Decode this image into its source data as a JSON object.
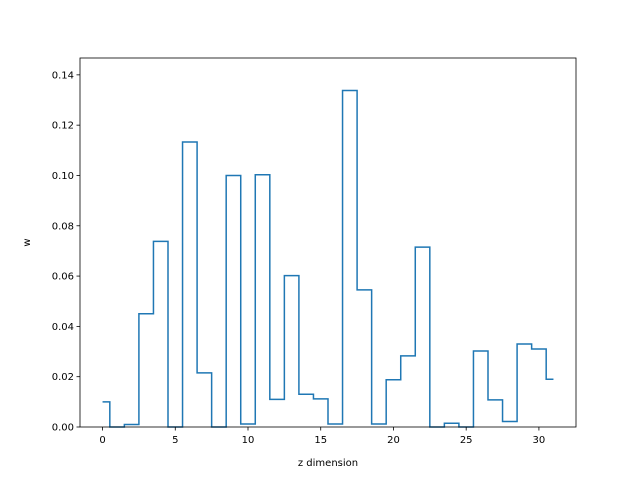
{
  "chart_data": {
    "type": "line",
    "drawstyle": "steps-mid",
    "title": "",
    "xlabel": "z dimension",
    "ylabel": "w",
    "xlim": [
      -1.55,
      32.55
    ],
    "ylim": [
      0,
      0.1467
    ],
    "x": [
      0,
      1,
      2,
      3,
      4,
      5,
      6,
      7,
      8,
      9,
      10,
      11,
      12,
      13,
      14,
      15,
      16,
      17,
      18,
      19,
      20,
      21,
      22,
      23,
      24,
      25,
      26,
      27,
      28,
      29,
      30,
      31
    ],
    "series": [
      {
        "color": "#1f77b4",
        "values": [
          0.01,
          0.0,
          0.001,
          0.045,
          0.0738,
          0.0,
          0.1133,
          0.0215,
          0.0,
          0.1,
          0.0012,
          0.1003,
          0.011,
          0.0602,
          0.013,
          0.0112,
          0.0012,
          0.1338,
          0.0545,
          0.0012,
          0.0188,
          0.0283,
          0.0715,
          0.0,
          0.0015,
          0.0,
          0.0302,
          0.0108,
          0.0022,
          0.033,
          0.031,
          0.019
        ]
      }
    ],
    "xticks": [
      0,
      5,
      10,
      15,
      20,
      25,
      30
    ],
    "xtick_labels": [
      "0",
      "5",
      "10",
      "15",
      "20",
      "25",
      "30"
    ],
    "yticks": [
      0,
      0.02,
      0.04,
      0.06,
      0.08,
      0.1,
      0.12,
      0.14
    ],
    "ytick_labels": [
      "0.00",
      "0.02",
      "0.04",
      "0.06",
      "0.08",
      "0.10",
      "0.12",
      "0.14"
    ],
    "grid": false
  }
}
